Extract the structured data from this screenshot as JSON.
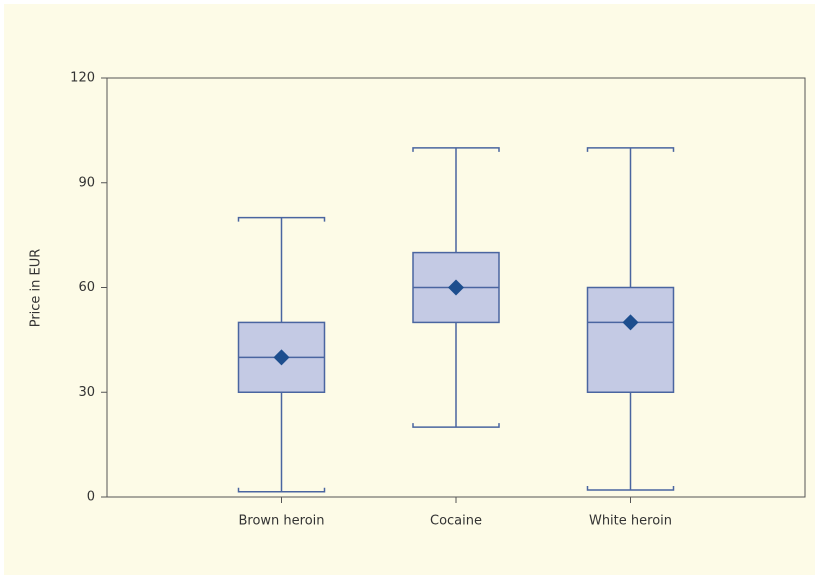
{
  "chart_data": {
    "type": "box",
    "ylabel": "Price in EUR",
    "categories": [
      "Brown heroin",
      "Cocaine",
      "White heroin"
    ],
    "boxes": [
      {
        "min": 1.5,
        "q1": 30,
        "median": 40,
        "q3": 50,
        "max": 80,
        "mean": 40
      },
      {
        "min": 20,
        "q1": 50,
        "median": 60,
        "q3": 70,
        "max": 100,
        "mean": 60
      },
      {
        "min": 2,
        "q1": 30,
        "median": 50,
        "q3": 60,
        "max": 100,
        "mean": 50
      }
    ],
    "color": "#c4cae4",
    "edge_color": "#4a65a0",
    "mean_color": "#1d4e8e",
    "ylim": [
      0,
      120
    ],
    "yticks": [
      0,
      30,
      60,
      90,
      120
    ]
  }
}
